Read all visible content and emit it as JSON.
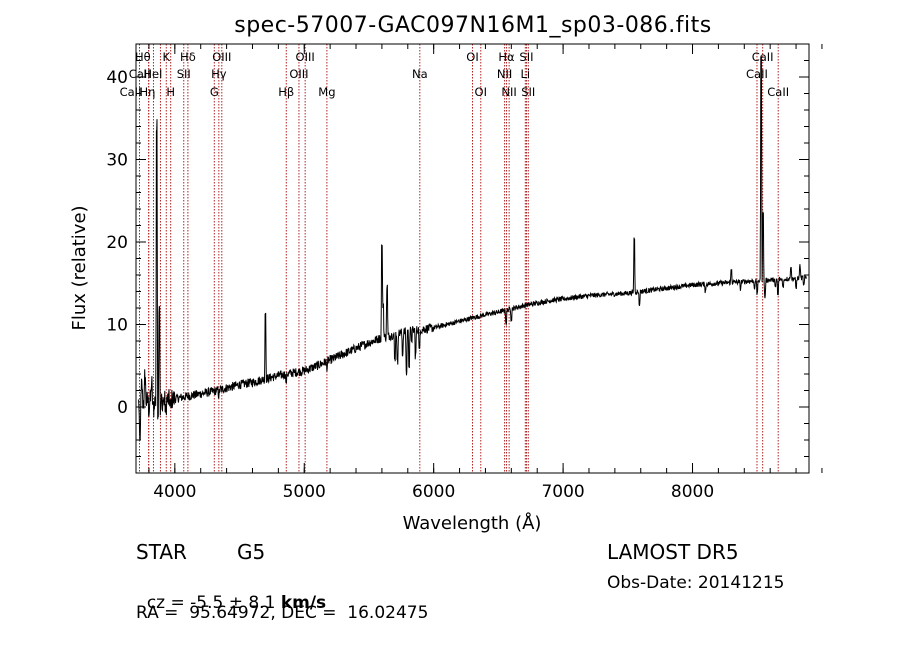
{
  "chart_data": {
    "type": "line",
    "title": "spec-57007-GAC097N16M1_sp03-086.fits",
    "xlabel": "Wavelength (Å)",
    "ylabel": "Flux (relative)",
    "xlim": [
      3700,
      8900
    ],
    "ylim": [
      -8,
      44
    ],
    "xticks": [
      4000,
      5000,
      6000,
      7000,
      8000
    ],
    "yticks": [
      0,
      10,
      20,
      30,
      40
    ],
    "minor_x_step": 200,
    "minor_y_step": 2,
    "line_color": "#000000",
    "marker_color": "#b22222",
    "continuum": [
      [
        3720,
        0.5
      ],
      [
        3800,
        0.8
      ],
      [
        3900,
        0.7
      ],
      [
        4000,
        1.0
      ],
      [
        4100,
        1.3
      ],
      [
        4200,
        1.6
      ],
      [
        4300,
        1.9
      ],
      [
        4400,
        2.3
      ],
      [
        4500,
        2.7
      ],
      [
        4600,
        3.0
      ],
      [
        4700,
        3.4
      ],
      [
        4800,
        3.8
      ],
      [
        4900,
        4.1
      ],
      [
        5000,
        4.4
      ],
      [
        5100,
        5.0
      ],
      [
        5200,
        5.7
      ],
      [
        5300,
        6.4
      ],
      [
        5400,
        7.1
      ],
      [
        5500,
        7.8
      ],
      [
        5600,
        8.4
      ],
      [
        5700,
        8.8
      ],
      [
        5800,
        9.2
      ],
      [
        5900,
        9.4
      ],
      [
        6000,
        9.6
      ],
      [
        6100,
        10.0
      ],
      [
        6200,
        10.4
      ],
      [
        6300,
        10.8
      ],
      [
        6400,
        11.2
      ],
      [
        6500,
        11.5
      ],
      [
        6600,
        11.9
      ],
      [
        6700,
        12.3
      ],
      [
        6800,
        12.6
      ],
      [
        6900,
        12.9
      ],
      [
        7000,
        13.1
      ],
      [
        7100,
        13.3
      ],
      [
        7200,
        13.5
      ],
      [
        7300,
        13.6
      ],
      [
        7400,
        13.7
      ],
      [
        7500,
        13.8
      ],
      [
        7600,
        14.0
      ],
      [
        7700,
        14.2
      ],
      [
        7800,
        14.4
      ],
      [
        7900,
        14.6
      ],
      [
        8000,
        14.8
      ],
      [
        8100,
        14.9
      ],
      [
        8200,
        15.0
      ],
      [
        8300,
        15.1
      ],
      [
        8400,
        15.2
      ],
      [
        8500,
        15.3
      ],
      [
        8600,
        15.4
      ],
      [
        8700,
        15.5
      ],
      [
        8800,
        15.6
      ],
      [
        8880,
        15.7
      ]
    ],
    "features": [
      [
        3730,
        -5
      ],
      [
        3745,
        2
      ],
      [
        3770,
        3
      ],
      [
        3800,
        -1
      ],
      [
        3820,
        2
      ],
      [
        3835,
        -1
      ],
      [
        3860,
        33
      ],
      [
        3870,
        -1
      ],
      [
        3880,
        12
      ],
      [
        3890,
        -1
      ],
      [
        3930,
        -1.5
      ],
      [
        3968,
        -1.2
      ],
      [
        4340,
        -0.6
      ],
      [
        4700,
        8
      ],
      [
        4860,
        -0.8
      ],
      [
        5175,
        -0.7
      ],
      [
        5600,
        11
      ],
      [
        5610,
        4
      ],
      [
        5640,
        6
      ],
      [
        5700,
        -3
      ],
      [
        5720,
        -3.5
      ],
      [
        5760,
        -2.5
      ],
      [
        5790,
        -5
      ],
      [
        5810,
        -4
      ],
      [
        5830,
        -1
      ],
      [
        5860,
        -3
      ],
      [
        5890,
        -2.5
      ],
      [
        6560,
        -1.5
      ],
      [
        6600,
        -1.2
      ],
      [
        7590,
        -1.5
      ],
      [
        7550,
        6.5
      ],
      [
        8100,
        -0.8
      ],
      [
        8300,
        1.5
      ],
      [
        8370,
        -0.8
      ],
      [
        8480,
        -0.8
      ],
      [
        8500,
        -1.5
      ],
      [
        8530,
        27
      ],
      [
        8545,
        8
      ],
      [
        8560,
        -2
      ],
      [
        8640,
        -1
      ],
      [
        8660,
        -1.8
      ],
      [
        8700,
        -1
      ],
      [
        8760,
        1.5
      ],
      [
        8800,
        -1.2
      ],
      [
        8830,
        1.4
      ],
      [
        8860,
        -1
      ],
      [
        8895,
        -16
      ]
    ],
    "lines": [
      {
        "label": "CaII",
        "wavelength": 3727,
        "row": 2,
        "side": "r"
      },
      {
        "label": "Hη",
        "wavelength": 3835,
        "row": 2,
        "side": "r"
      },
      {
        "label": "Hθ",
        "wavelength": 3798,
        "row": 0,
        "side": "r"
      },
      {
        "label": "CaII",
        "wavelength": 3798,
        "row": 1,
        "side": "r"
      },
      {
        "label": "HeI",
        "wavelength": 3889,
        "row": 1,
        "side": "r"
      },
      {
        "label": "K",
        "wavelength": 3934,
        "row": 0,
        "side": "c"
      },
      {
        "label": "H",
        "wavelength": 3968,
        "row": 2,
        "side": "c"
      },
      {
        "label": "SII",
        "wavelength": 4069,
        "row": 1,
        "side": "c"
      },
      {
        "label": "Hδ",
        "wavelength": 4101,
        "row": 0,
        "side": "c"
      },
      {
        "label": "OIII",
        "wavelength": 4363,
        "row": 0,
        "side": "c"
      },
      {
        "label": "Hγ",
        "wavelength": 4340,
        "row": 1,
        "side": "c"
      },
      {
        "label": "G",
        "wavelength": 4305,
        "row": 2,
        "side": "c"
      },
      {
        "label": "Hβ",
        "wavelength": 4861,
        "row": 2,
        "side": "c"
      },
      {
        "label": "OIII",
        "wavelength": 5007,
        "row": 0,
        "side": "c"
      },
      {
        "label": "OIII",
        "wavelength": 4959,
        "row": 1,
        "side": "c"
      },
      {
        "label": "Mg",
        "wavelength": 5175,
        "row": 2,
        "side": "c"
      },
      {
        "label": "Na",
        "wavelength": 5893,
        "row": 1,
        "side": "c"
      },
      {
        "label": "OI",
        "wavelength": 6300,
        "row": 0,
        "side": "c"
      },
      {
        "label": "OI",
        "wavelength": 6364,
        "row": 2,
        "side": "c"
      },
      {
        "label": "Hα",
        "wavelength": 6563,
        "row": 0,
        "side": "c"
      },
      {
        "label": "NII",
        "wavelength": 6548,
        "row": 1,
        "side": "c"
      },
      {
        "label": "NII",
        "wavelength": 6583,
        "row": 2,
        "side": "c"
      },
      {
        "label": "SII",
        "wavelength": 6717,
        "row": 0,
        "side": "c"
      },
      {
        "label": "Li",
        "wavelength": 6708,
        "row": 1,
        "side": "c"
      },
      {
        "label": "SII",
        "wavelength": 6731,
        "row": 2,
        "side": "c"
      },
      {
        "label": "CaII",
        "wavelength": 8542,
        "row": 0,
        "side": "c"
      },
      {
        "label": "CaII",
        "wavelength": 8498,
        "row": 1,
        "side": "c"
      },
      {
        "label": "CaII",
        "wavelength": 8662,
        "row": 2,
        "side": "c"
      }
    ]
  },
  "info": {
    "object_class": "STAR",
    "subclass": "G5",
    "survey": "LAMOST DR5",
    "cz_label": "cz = ",
    "cz_value": "-5.5 ± 8.1",
    "cz_unit": "km/s",
    "obs_date": "Obs-Date: 20141215",
    "coords": "RA =  95.64972, DEC =  16.02475"
  }
}
